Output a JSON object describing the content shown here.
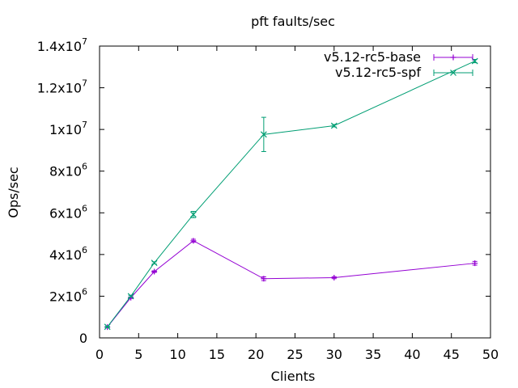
{
  "chart_data": {
    "type": "line",
    "title": "pft faults/sec",
    "xlabel": "Clients",
    "ylabel": "Ops/sec",
    "xlim": [
      0,
      50
    ],
    "ylim": [
      0,
      14000000
    ],
    "x_ticks": [
      0,
      5,
      10,
      15,
      20,
      25,
      30,
      35,
      40,
      45,
      50
    ],
    "y_ticks": [
      {
        "value": 0,
        "mantissa": "0",
        "exp": ""
      },
      {
        "value": 2000000,
        "mantissa": "2x10",
        "exp": "6"
      },
      {
        "value": 4000000,
        "mantissa": "4x10",
        "exp": "6"
      },
      {
        "value": 6000000,
        "mantissa": "6x10",
        "exp": "6"
      },
      {
        "value": 8000000,
        "mantissa": "8x10",
        "exp": "6"
      },
      {
        "value": 10000000,
        "mantissa": "1x10",
        "exp": "7"
      },
      {
        "value": 12000000,
        "mantissa": "1.2x10",
        "exp": "7"
      },
      {
        "value": 14000000,
        "mantissa": "1.4x10",
        "exp": "7"
      }
    ],
    "grid": false,
    "legend_position": "top-right",
    "series": [
      {
        "name": "v5.12-rc5-base",
        "color": "#9400d3",
        "marker": "plus",
        "points": [
          {
            "x": 1,
            "y": 520000,
            "err": 20000
          },
          {
            "x": 4,
            "y": 1930000,
            "err": 40000
          },
          {
            "x": 7,
            "y": 3180000,
            "err": 40000
          },
          {
            "x": 12,
            "y": 4660000,
            "err": 70000
          },
          {
            "x": 21,
            "y": 2840000,
            "err": 90000
          },
          {
            "x": 30,
            "y": 2890000,
            "err": 50000
          },
          {
            "x": 48,
            "y": 3580000,
            "err": 90000
          }
        ]
      },
      {
        "name": "v5.12-rc5-spf",
        "color": "#009e73",
        "marker": "cross",
        "points": [
          {
            "x": 1,
            "y": 530000,
            "err": 20000
          },
          {
            "x": 4,
            "y": 2000000,
            "err": 40000
          },
          {
            "x": 7,
            "y": 3600000,
            "err": 50000
          },
          {
            "x": 12,
            "y": 5920000,
            "err": 150000
          },
          {
            "x": 21,
            "y": 9760000,
            "err": 820000
          },
          {
            "x": 30,
            "y": 10180000,
            "err": 60000
          },
          {
            "x": 48,
            "y": 13280000,
            "err": 80000
          }
        ]
      }
    ]
  }
}
